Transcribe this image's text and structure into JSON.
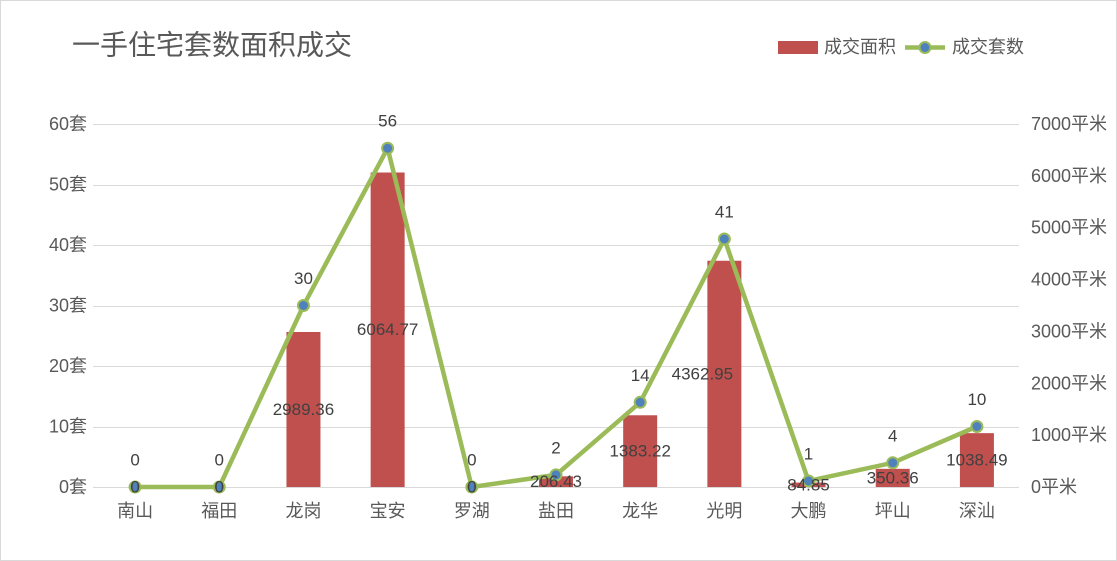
{
  "chart_data": {
    "type": "bar",
    "title": "一手住宅套数面积成交",
    "categories": [
      "南山",
      "福田",
      "龙岗",
      "宝安",
      "罗湖",
      "盐田",
      "龙华",
      "光明",
      "大鹏",
      "坪山",
      "深汕"
    ],
    "series": [
      {
        "name": "成交面积",
        "type": "bar",
        "secondary_axis": true,
        "color": "#C0504D",
        "values": [
          0,
          0,
          2989.36,
          6064.77,
          0,
          206.43,
          1383.22,
          4362.95,
          84.85,
          350.36,
          1038.49
        ]
      },
      {
        "name": "成交套数",
        "type": "line",
        "secondary_axis": false,
        "color": "#9BBB59",
        "marker_color": "#4F81BD",
        "values": [
          0,
          0,
          30,
          56,
          0,
          2,
          14,
          41,
          1,
          4,
          10
        ]
      }
    ],
    "y_left": {
      "ylim": [
        0,
        60
      ],
      "ticks": [
        0,
        10,
        20,
        30,
        40,
        50,
        60
      ],
      "tick_labels": [
        "0套",
        "10套",
        "20套",
        "30套",
        "40套",
        "50套",
        "60套"
      ]
    },
    "y_right": {
      "ylim": [
        0,
        7000
      ],
      "ticks": [
        0,
        1000,
        2000,
        3000,
        4000,
        5000,
        6000,
        7000
      ],
      "tick_labels": [
        "0平米",
        "1000平米",
        "2000平米",
        "3000平米",
        "4000平米",
        "5000平米",
        "6000平米",
        "7000平米"
      ]
    },
    "grid": true,
    "legend_position": "top-right",
    "data_labels": true
  }
}
